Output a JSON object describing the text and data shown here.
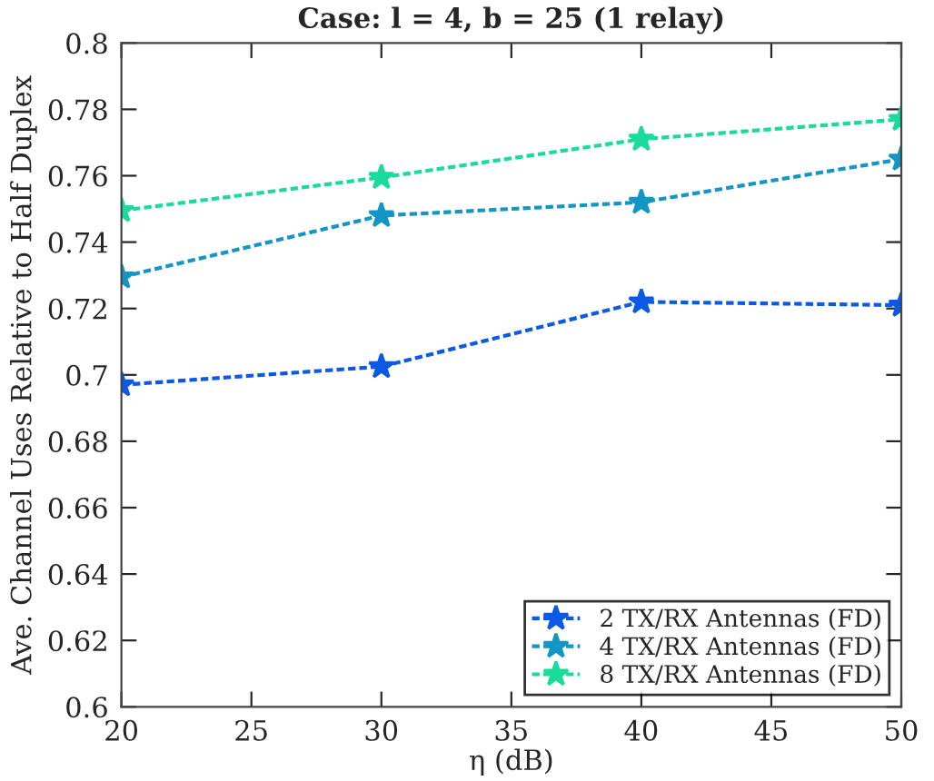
{
  "chart_data": {
    "type": "line",
    "title": "Case: l = 4, b = 25 (1 relay)",
    "xlabel": "η (dB)",
    "ylabel": "Ave. Channel Uses Relative to Half Duplex",
    "x": [
      20,
      30,
      40,
      50
    ],
    "series": [
      {
        "name": "2 TX/RX Antennas (FD)",
        "color": "#0a5ae6",
        "values": [
          0.697,
          0.7025,
          0.722,
          0.721
        ]
      },
      {
        "name": "4 TX/RX Antennas (FD)",
        "color": "#1496c4",
        "values": [
          0.7295,
          0.748,
          0.752,
          0.765
        ]
      },
      {
        "name": "8 TX/RX Antennas (FD)",
        "color": "#19dc9a",
        "values": [
          0.7495,
          0.7595,
          0.771,
          0.777
        ]
      }
    ],
    "xlim": [
      20,
      50
    ],
    "xticks": [
      20,
      25,
      30,
      35,
      40,
      45,
      50
    ],
    "ylim": [
      0.6,
      0.8
    ],
    "yticks": [
      0.6,
      0.62,
      0.64,
      0.66,
      0.68,
      0.7,
      0.72,
      0.74,
      0.76,
      0.78,
      0.8
    ],
    "grid": false,
    "legend": "bottom right",
    "marker": "star",
    "line_style": "dotted"
  }
}
